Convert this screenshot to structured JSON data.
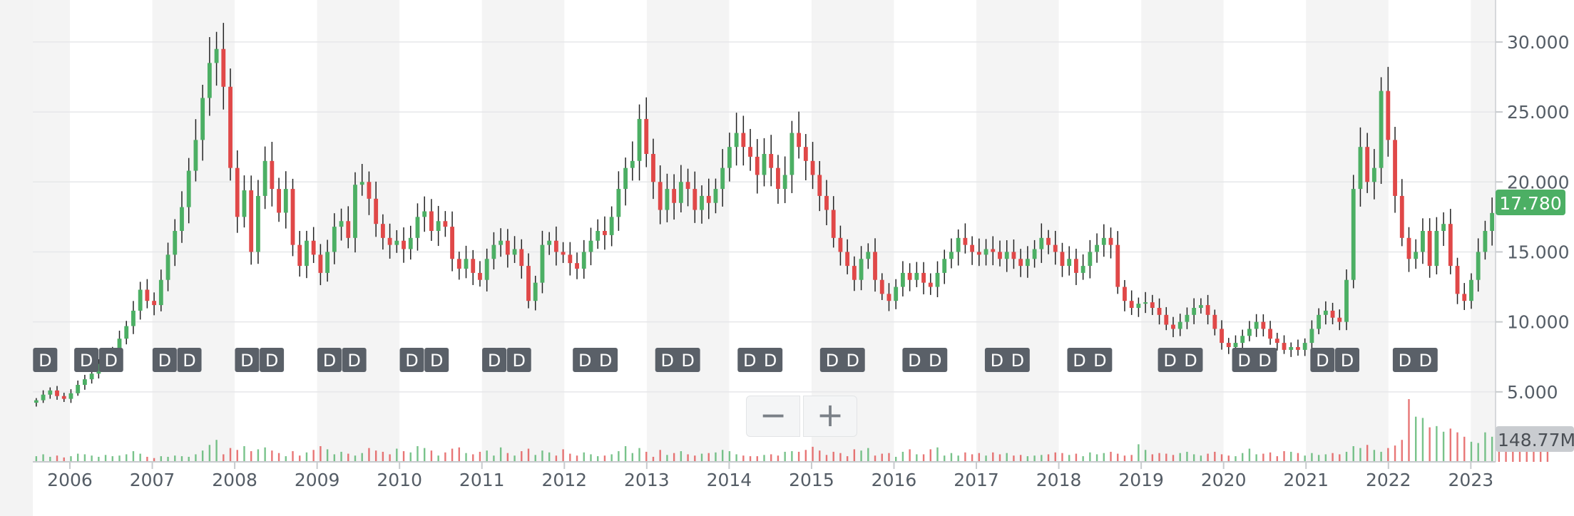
{
  "chart_data": {
    "type": "candlestick",
    "price_axis": {
      "ticks": [
        "5.000",
        "10.000",
        "15.000",
        "20.000",
        "25.000",
        "30.000"
      ],
      "ylim": [
        0,
        33
      ]
    },
    "x_axis": {
      "tick_labels": [
        "2006",
        "2007",
        "2008",
        "2009",
        "2010",
        "2011",
        "2012",
        "2013",
        "2014",
        "2015",
        "2016",
        "2017",
        "2018",
        "2019",
        "2020",
        "2021",
        "2022",
        "2023"
      ]
    },
    "x_range": [
      2005.55,
      2023.3
    ],
    "last_price": "17.780",
    "last_volume": "148.77M",
    "colors": {
      "up": "#4caf64",
      "down": "#e04848",
      "last_price_tag": "#4caf64",
      "volume_tag": "#c9ccd0",
      "marker": "#5a6068"
    },
    "dividend_marker_label": "D",
    "dividend_markers": [
      2005.7,
      2006.2,
      2006.5,
      2007.15,
      2007.45,
      2008.15,
      2008.45,
      2009.15,
      2009.45,
      2010.15,
      2010.45,
      2011.15,
      2011.45,
      2012.25,
      2012.5,
      2013.25,
      2013.5,
      2014.25,
      2014.5,
      2015.25,
      2015.5,
      2016.25,
      2016.5,
      2017.25,
      2017.5,
      2018.25,
      2018.5,
      2019.35,
      2019.6,
      2020.25,
      2020.5,
      2021.2,
      2021.5,
      2022.2,
      2022.45
    ],
    "monthly_closes": [
      4.4,
      4.8,
      5.1,
      4.7,
      4.5,
      4.9,
      5.5,
      5.9,
      6.3,
      7.0,
      7.4,
      7.9,
      8.8,
      9.7,
      10.8,
      12.3,
      11.5,
      11.2,
      13.0,
      14.8,
      16.5,
      18.2,
      20.8,
      23.0,
      26.0,
      28.5,
      29.5,
      26.8,
      21.0,
      17.5,
      19.4,
      15.0,
      19.0,
      21.5,
      19.5,
      17.8,
      19.5,
      15.5,
      14.0,
      15.8,
      14.8,
      13.5,
      15.0,
      16.8,
      17.2,
      16.0,
      19.8,
      20.0,
      18.8,
      17.0,
      16.0,
      15.5,
      15.8,
      15.2,
      16.0,
      17.5,
      17.9,
      16.5,
      17.2,
      16.8,
      14.5,
      13.8,
      14.5,
      13.5,
      13.0,
      14.5,
      15.5,
      15.8,
      14.8,
      15.2,
      14.0,
      11.5,
      12.8,
      15.5,
      15.8,
      15.0,
      14.8,
      14.2,
      13.8,
      15.0,
      15.8,
      16.5,
      16.2,
      17.5,
      19.5,
      21.0,
      21.5,
      24.5,
      22.0,
      20.0,
      18.0,
      19.5,
      18.5,
      20.0,
      19.5,
      18.0,
      19.0,
      18.5,
      19.5,
      21.0,
      22.5,
      23.5,
      22.5,
      21.8,
      20.5,
      22.0,
      21.0,
      19.5,
      20.5,
      23.5,
      22.5,
      21.5,
      20.5,
      19.0,
      18.0,
      16.0,
      15.0,
      14.0,
      13.0,
      14.5,
      15.0,
      13.0,
      12.0,
      11.5,
      12.5,
      13.5,
      13.0,
      13.5,
      12.8,
      12.5,
      13.5,
      14.5,
      15.0,
      16.0,
      15.5,
      15.0,
      14.8,
      15.2,
      15.0,
      14.5,
      15.0,
      14.5,
      14.0,
      14.5,
      15.2,
      16.0,
      15.5,
      15.0,
      14.0,
      14.5,
      13.5,
      14.0,
      15.0,
      15.5,
      16.0,
      15.5,
      12.5,
      11.5,
      11.0,
      11.3,
      11.4,
      11.0,
      10.5,
      9.8,
      9.5,
      10.0,
      10.5,
      11.0,
      11.2,
      10.5,
      9.5,
      8.5,
      8.2,
      8.5,
      9.0,
      9.5,
      10.0,
      9.5,
      8.8,
      8.5,
      8.0,
      8.2,
      8.0,
      8.5,
      9.5,
      10.5,
      10.8,
      10.3,
      10.0,
      13.0,
      19.5,
      22.5,
      20.0,
      21.0,
      26.5,
      23.0,
      19.0,
      16.0,
      14.5,
      15.0,
      16.5,
      14.0,
      16.5,
      17.0,
      14.0,
      12.0,
      11.5,
      13.0,
      15.0,
      16.5,
      17.78
    ],
    "monthly_volume_rel": [
      0.09,
      0.12,
      0.08,
      0.1,
      0.07,
      0.09,
      0.13,
      0.12,
      0.1,
      0.08,
      0.11,
      0.09,
      0.1,
      0.12,
      0.17,
      0.13,
      0.08,
      0.06,
      0.09,
      0.08,
      0.1,
      0.09,
      0.08,
      0.12,
      0.18,
      0.27,
      0.35,
      0.12,
      0.22,
      0.19,
      0.25,
      0.17,
      0.2,
      0.23,
      0.18,
      0.14,
      0.09,
      0.17,
      0.1,
      0.15,
      0.19,
      0.25,
      0.2,
      0.12,
      0.16,
      0.13,
      0.1,
      0.14,
      0.22,
      0.18,
      0.16,
      0.12,
      0.21,
      0.17,
      0.15,
      0.25,
      0.22,
      0.18,
      0.1,
      0.15,
      0.21,
      0.23,
      0.14,
      0.12,
      0.16,
      0.18,
      0.1,
      0.23,
      0.14,
      0.1,
      0.17,
      0.21,
      0.11,
      0.18,
      0.15,
      0.1,
      0.2,
      0.13,
      0.1,
      0.15,
      0.12,
      0.09,
      0.1,
      0.12,
      0.17,
      0.25,
      0.14,
      0.22,
      0.16,
      0.08,
      0.19,
      0.11,
      0.14,
      0.17,
      0.12,
      0.1,
      0.13,
      0.14,
      0.15,
      0.19,
      0.17,
      0.12,
      0.1,
      0.09,
      0.09,
      0.11,
      0.12,
      0.1,
      0.16,
      0.17,
      0.16,
      0.19,
      0.24,
      0.18,
      0.11,
      0.16,
      0.14,
      0.09,
      0.2,
      0.18,
      0.22,
      0.1,
      0.13,
      0.14,
      0.08,
      0.16,
      0.2,
      0.12,
      0.12,
      0.2,
      0.23,
      0.1,
      0.14,
      0.1,
      0.15,
      0.12,
      0.14,
      0.1,
      0.15,
      0.12,
      0.14,
      0.1,
      0.11,
      0.09,
      0.1,
      0.11,
      0.12,
      0.15,
      0.14,
      0.11,
      0.13,
      0.09,
      0.15,
      0.12,
      0.14,
      0.16,
      0.13,
      0.1,
      0.11,
      0.28,
      0.19,
      0.12,
      0.14,
      0.13,
      0.11,
      0.14,
      0.16,
      0.12,
      0.1,
      0.13,
      0.16,
      0.12,
      0.1,
      0.09,
      0.14,
      0.21,
      0.12,
      0.13,
      0.15,
      0.09,
      0.17,
      0.16,
      0.14,
      0.1,
      0.14,
      0.11,
      0.12,
      0.14,
      0.12,
      0.16,
      0.25,
      0.22,
      0.27,
      0.19,
      0.16,
      0.22,
      0.26,
      0.35,
      1.0,
      0.72,
      0.7,
      0.55,
      0.57,
      0.48,
      0.53,
      0.47,
      0.4,
      0.32,
      0.3,
      0.47,
      0.4,
      0.38,
      0.34,
      0.3,
      0.39,
      0.35,
      0.38,
      0.23,
      0.17
    ]
  }
}
